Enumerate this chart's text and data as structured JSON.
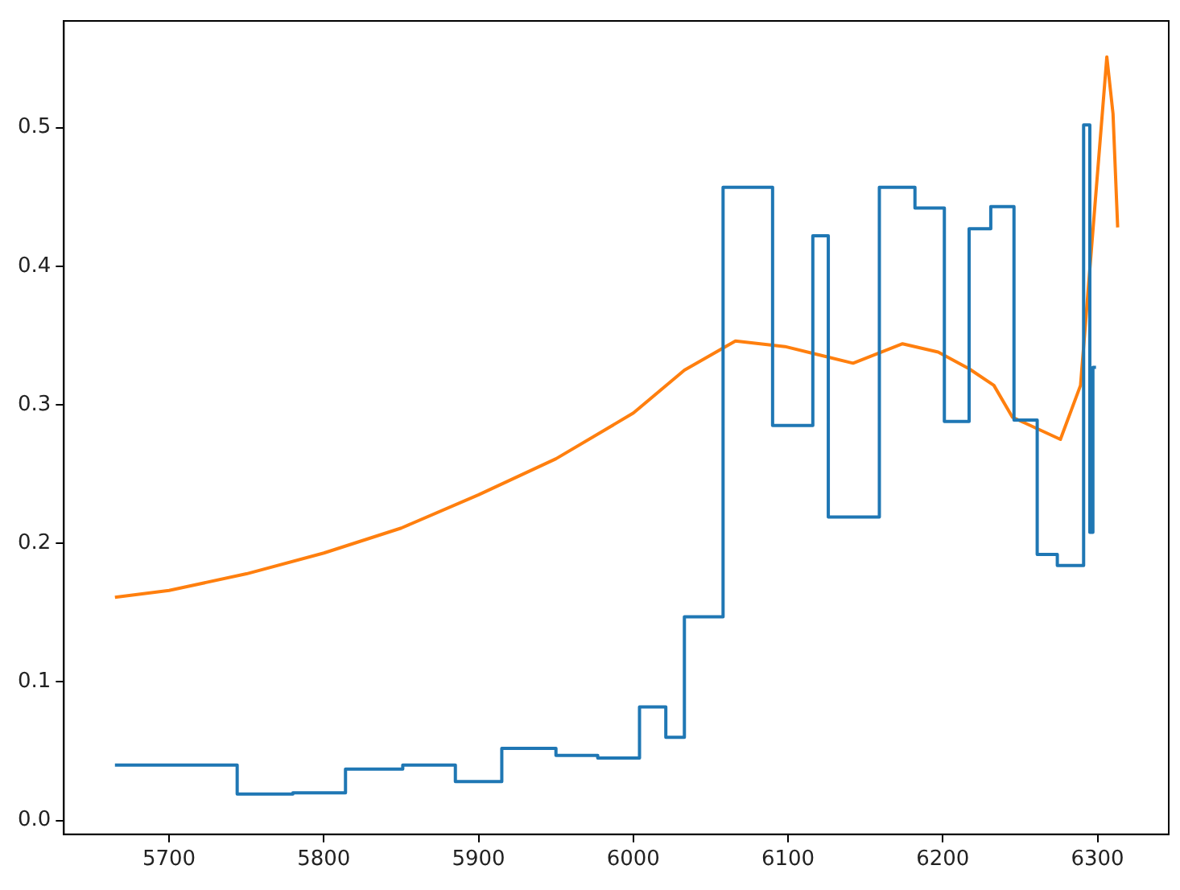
{
  "chart_data": {
    "type": "line",
    "xlim": [
      5632,
      6346
    ],
    "ylim": [
      -0.01,
      0.577
    ],
    "xticks": [
      5700,
      5800,
      5900,
      6000,
      6100,
      6200,
      6300
    ],
    "yticks": [
      {
        "value": 0,
        "label": "0.0"
      },
      0.1,
      0.2,
      0.3,
      0.4,
      0.5
    ],
    "grid": false,
    "legend": false,
    "marker": "none",
    "line_style": "solid",
    "series": [
      {
        "type": "step",
        "color": "#1f77b4",
        "x": [
          5665,
          5744,
          5780,
          5814,
          5851,
          5885,
          5915,
          5950,
          5977,
          6004,
          6021,
          6033,
          6058,
          6090,
          6116,
          6126,
          6159,
          6182,
          6201,
          6217,
          6231,
          6246,
          6261,
          6274,
          6291,
          6295,
          6297,
          6299
        ],
        "values": [
          0.04,
          0.019,
          0.02,
          0.037,
          0.04,
          0.028,
          0.052,
          0.047,
          0.045,
          0.082,
          0.06,
          0.147,
          0.457,
          0.285,
          0.422,
          0.219,
          0.457,
          0.442,
          0.288,
          0.427,
          0.443,
          0.289,
          0.192,
          0.184,
          0.502,
          0.208,
          0.327,
          0.327
        ]
      },
      {
        "color": "#ff7f0e",
        "x": [
          5665,
          5700,
          5750,
          5800,
          5850,
          5900,
          5950,
          6000,
          6033,
          6066,
          6098,
          6142,
          6174,
          6197,
          6217,
          6233,
          6245,
          6276,
          6289,
          6306,
          6310,
          6313
        ],
        "values": [
          0.161,
          0.166,
          0.178,
          0.193,
          0.211,
          0.235,
          0.261,
          0.294,
          0.325,
          0.346,
          0.342,
          0.33,
          0.344,
          0.338,
          0.326,
          0.314,
          0.291,
          0.275,
          0.314,
          0.551,
          0.51,
          0.428
        ]
      }
    ]
  }
}
